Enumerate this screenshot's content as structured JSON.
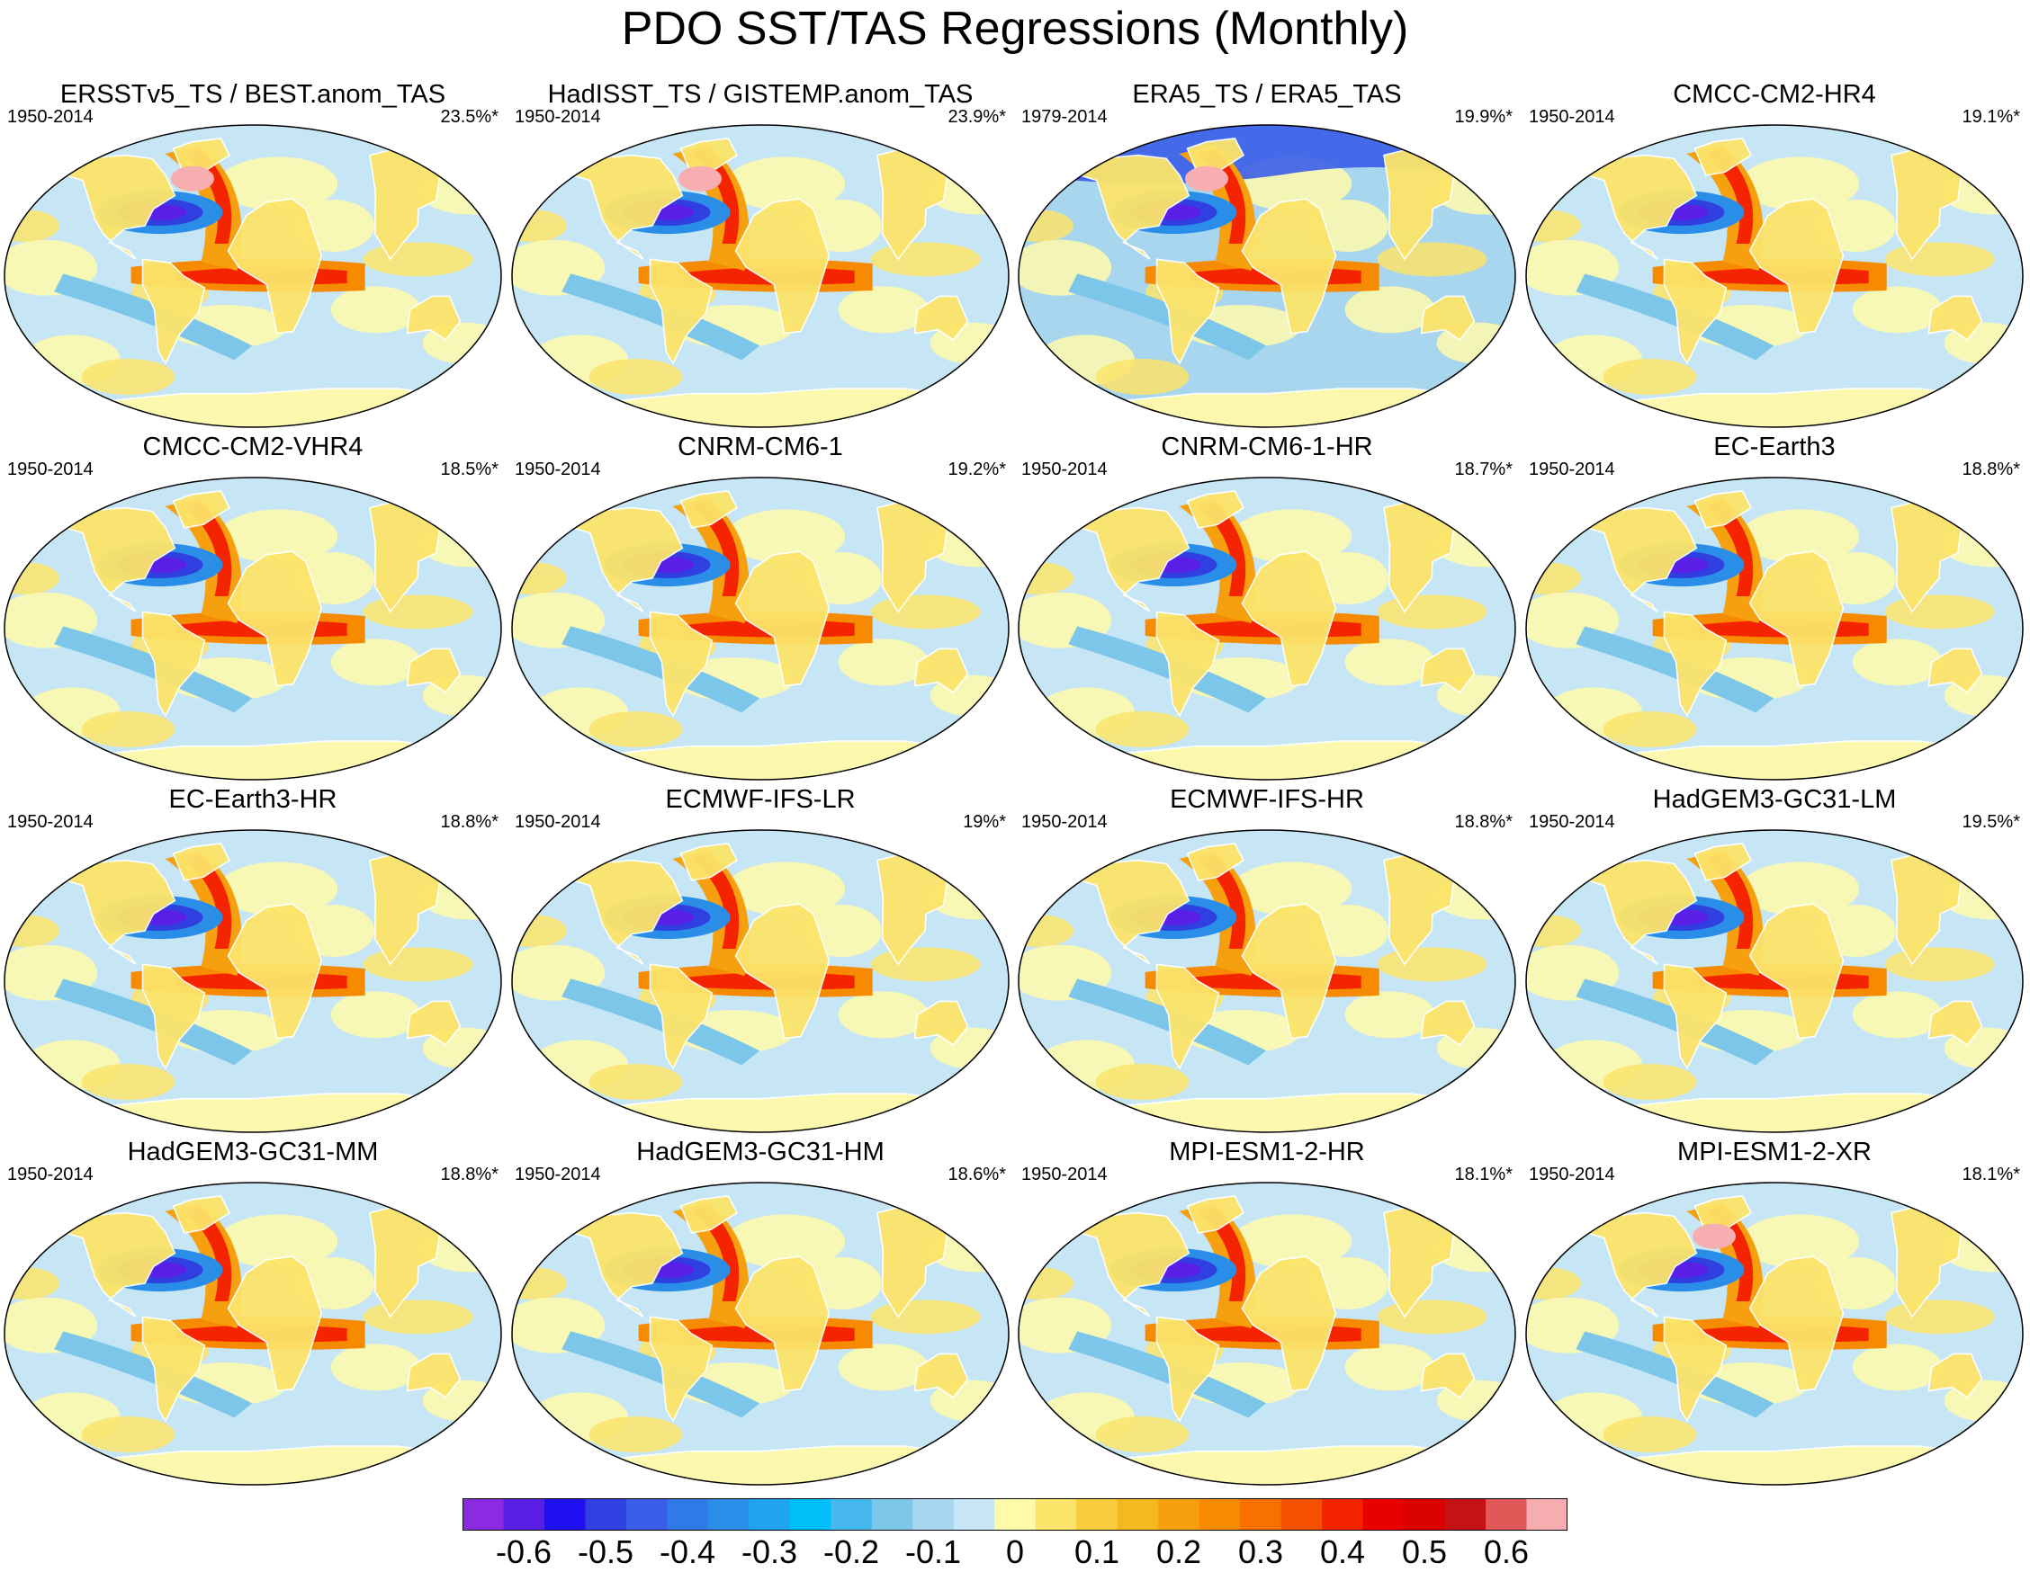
{
  "title": "PDO SST/TAS Regressions (Monthly)",
  "panels": [
    {
      "title": "ERSSTv5_TS / BEST.anom_TAS",
      "period": "1950-2014",
      "percent": "23.5%*"
    },
    {
      "title": "HadISST_TS / GISTEMP.anom_TAS",
      "period": "1950-2014",
      "percent": "23.9%*"
    },
    {
      "title": "ERA5_TS / ERA5_TAS",
      "period": "1979-2014",
      "percent": "19.9%*"
    },
    {
      "title": "CMCC-CM2-HR4",
      "period": "1950-2014",
      "percent": "19.1%*"
    },
    {
      "title": "CMCC-CM2-VHR4",
      "period": "1950-2014",
      "percent": "18.5%*"
    },
    {
      "title": "CNRM-CM6-1",
      "period": "1950-2014",
      "percent": "19.2%*"
    },
    {
      "title": "CNRM-CM6-1-HR",
      "period": "1950-2014",
      "percent": "18.7%*"
    },
    {
      "title": "EC-Earth3",
      "period": "1950-2014",
      "percent": "18.8%*"
    },
    {
      "title": "EC-Earth3-HR",
      "period": "1950-2014",
      "percent": "18.8%*"
    },
    {
      "title": "ECMWF-IFS-LR",
      "period": "1950-2014",
      "percent": "19%*"
    },
    {
      "title": "ECMWF-IFS-HR",
      "period": "1950-2014",
      "percent": "18.8%*"
    },
    {
      "title": "HadGEM3-GC31-LM",
      "period": "1950-2014",
      "percent": "19.5%*"
    },
    {
      "title": "HadGEM3-GC31-MM",
      "period": "1950-2014",
      "percent": "18.8%*"
    },
    {
      "title": "HadGEM3-GC31-HM",
      "period": "1950-2014",
      "percent": "18.6%*"
    },
    {
      "title": "MPI-ESM1-2-HR",
      "period": "1950-2014",
      "percent": "18.1%*"
    },
    {
      "title": "MPI-ESM1-2-XR",
      "period": "1950-2014",
      "percent": "18.1%*"
    }
  ],
  "colorbar": {
    "colors": [
      "#8a2be2",
      "#5a1fe6",
      "#1f10f2",
      "#3040e0",
      "#3a5ee8",
      "#2f7ae6",
      "#2a8ee8",
      "#20a4f0",
      "#00bff8",
      "#46b8ee",
      "#7cc6ea",
      "#a8d6ee",
      "#c6e6f6",
      "#fffaaa",
      "#fce46a",
      "#f8cc3c",
      "#f6b820",
      "#f6a010",
      "#f68a00",
      "#f87000",
      "#f65000",
      "#f42400",
      "#e80000",
      "#d80000",
      "#c61212",
      "#e05858",
      "#f6aeb0"
    ],
    "tick_labels": [
      "-0.6",
      "-0.5",
      "-0.4",
      "-0.3",
      "-0.2",
      "-0.1",
      "0",
      "0.1",
      "0.2",
      "0.3",
      "0.4",
      "0.5",
      "0.6"
    ]
  }
}
